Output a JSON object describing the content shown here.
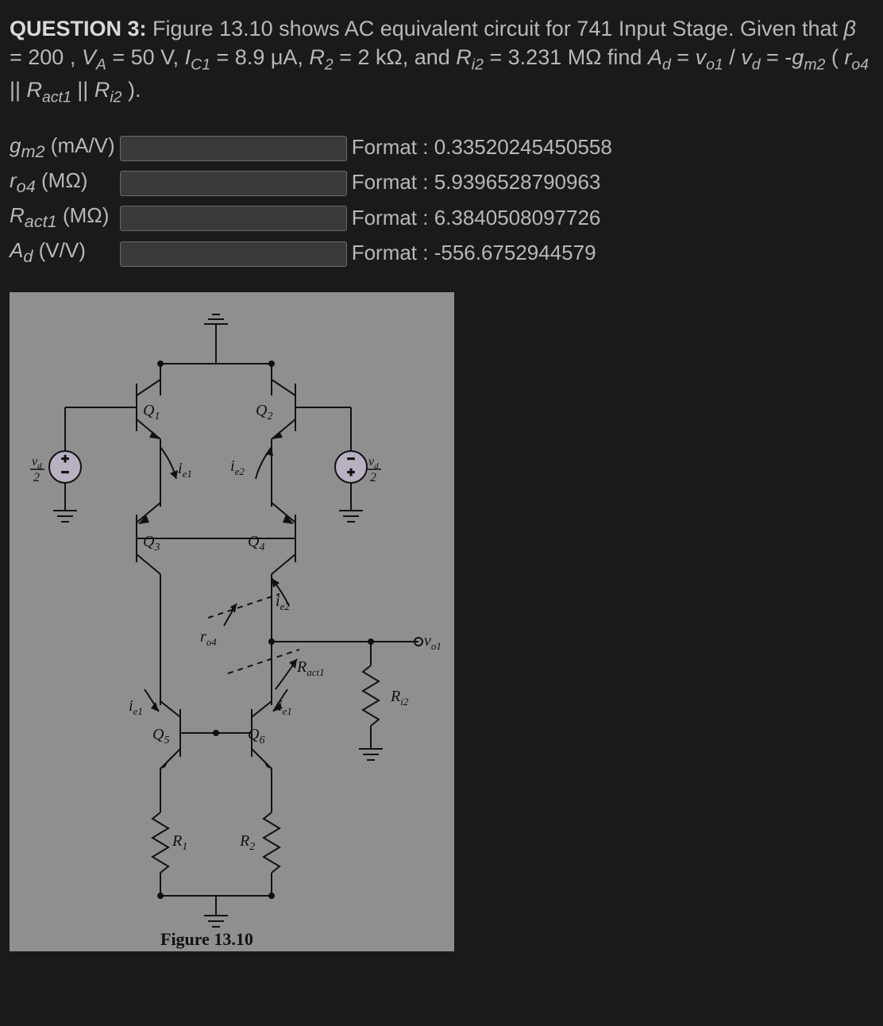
{
  "question": {
    "number_label": "QUESTION 3:",
    "text_html": "Figure 13.10 shows AC equivalent circuit for 741 Input Stage. Given that <span class='sub'>β</span> = 200 , <span class='sub'>V<sub>A</sub></span> = 50 V, <span class='sub'>I<sub>C1</sub></span> = 8.9 μA, <span class='sub'>R<sub>2</sub></span> = 2 kΩ, and <span class='sub'>R<sub>i2</sub></span> = 3.231 MΩ find <span class='sub'>A<sub>d</sub></span> = <span class='sub'>v<sub>o1</sub></span> / <span class='sub'>v<sub>d</sub></span> = -<span class='sub'>g<sub>m2</sub></span> ( <span class='sub'>r<sub>o4</sub></span> || <span class='sub'>R<sub>act1</sub></span> || <span class='sub'>R<sub>i2</sub></span> )."
  },
  "fields": [
    {
      "label_html": "g<sub>m2</sub> <span class='unit'>(mA/V)</span>",
      "format": "Format : 0.33520245450558"
    },
    {
      "label_html": "r<sub>o4</sub> <span class='unit'>(MΩ)</span>",
      "format": "Format : 5.9396528790963"
    },
    {
      "label_html": "R<sub>act1</sub> <span class='unit'>(MΩ)</span>",
      "format": "Format : 6.3840508097726"
    },
    {
      "label_html": "A<sub>d</sub> <span class='unit'>(V/V)</span>",
      "format": "Format : -556.6752944579"
    }
  ],
  "figure": {
    "caption": "Figure 13.10",
    "background_color": "#8f8f8f",
    "stroke_color": "#111111",
    "stroke_width": 2,
    "labels": {
      "Q1": "Q₁",
      "Q2": "Q₂",
      "Q3": "Q₃",
      "Q4": "Q₄",
      "Q5": "Q₅",
      "Q6": "Q₆",
      "ie1": "iₑ₁",
      "ie2": "iₑ₂",
      "ro4": "r_{o4}",
      "Ract1": "R_{act1}",
      "R1": "R₁",
      "R2": "R₂",
      "Ri2": "R_{i2}",
      "vo1": "v_{o1}",
      "vd2": "v_d / 2"
    }
  }
}
